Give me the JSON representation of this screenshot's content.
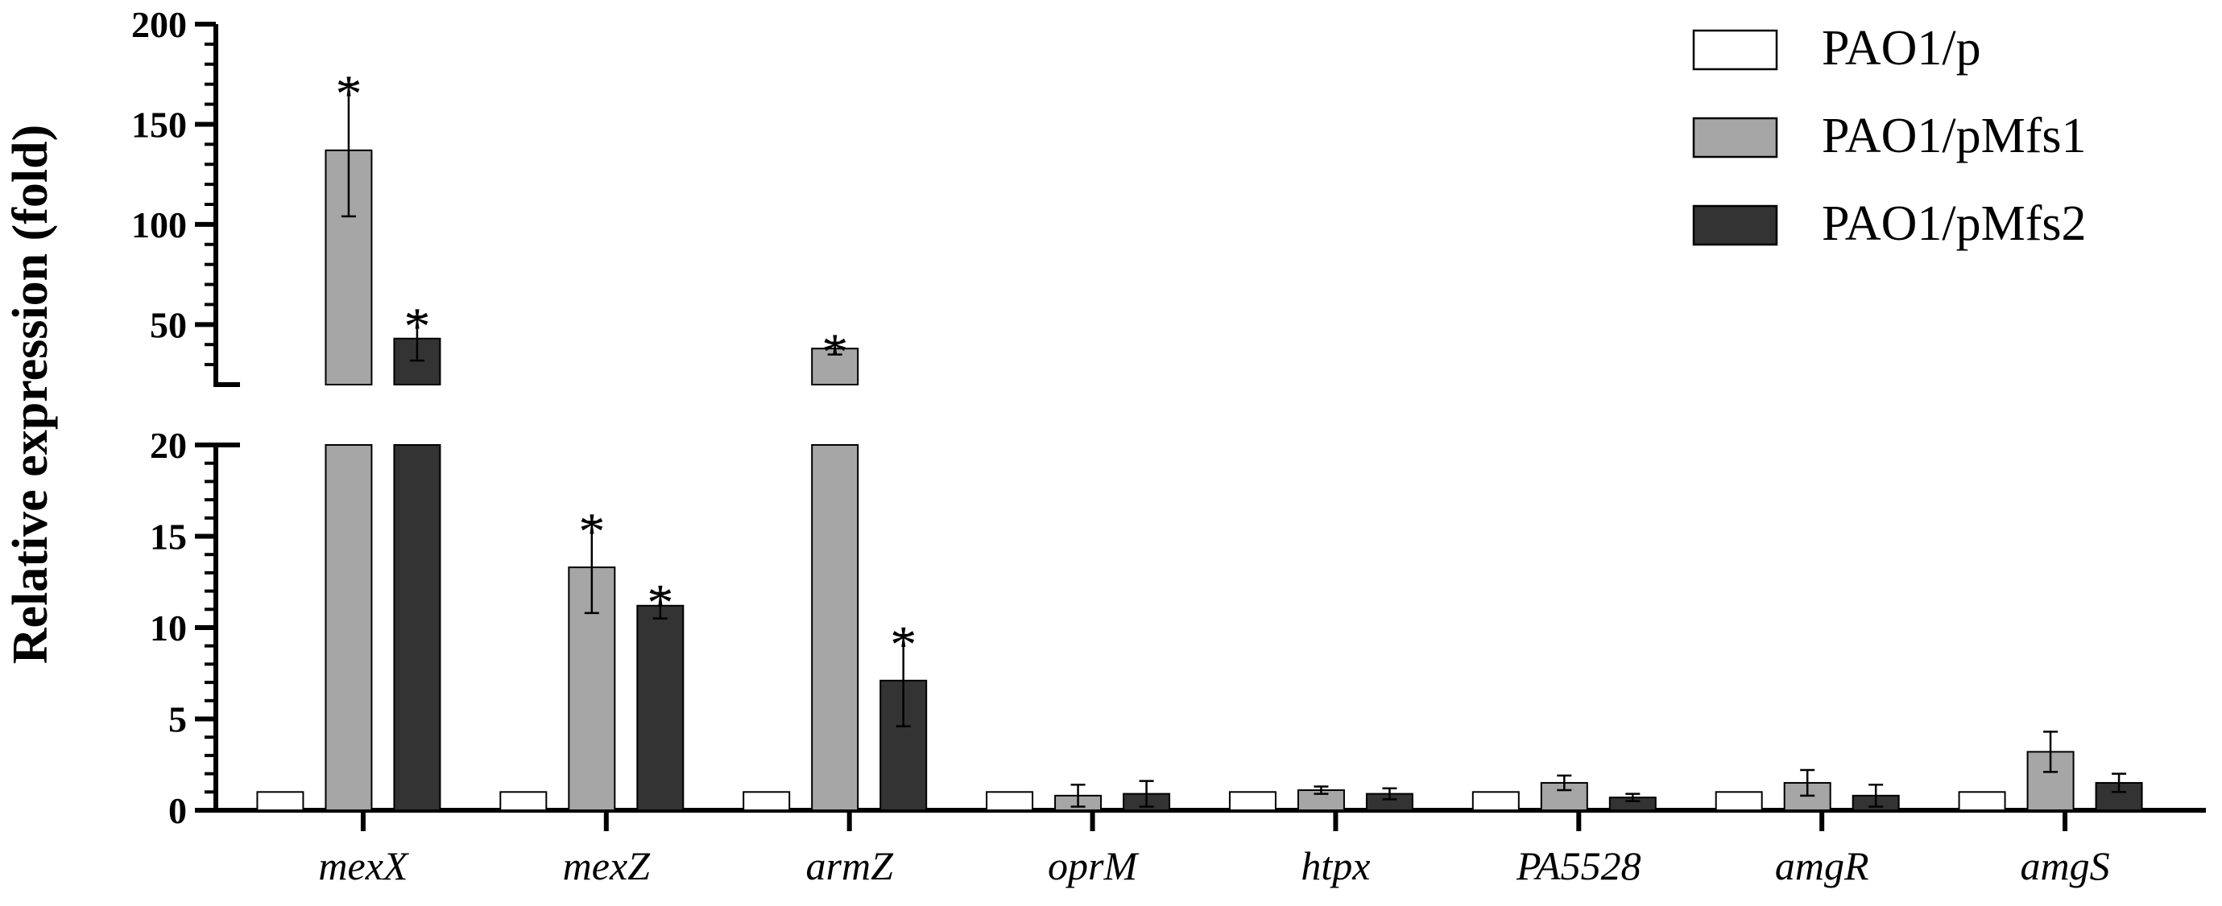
{
  "chart_data": {
    "type": "bar",
    "title": "",
    "xlabel": "",
    "ylabel": "Relative expression (fold)",
    "categories": [
      "mexX",
      "mexZ",
      "armZ",
      "oprM",
      "htpx",
      "PA5528",
      "amgR",
      "amgS"
    ],
    "series": [
      {
        "name": "PAO1/p",
        "color": "#ffffff",
        "values": [
          1,
          1,
          1,
          1,
          1,
          1,
          1,
          1
        ],
        "errors": [
          0,
          0,
          0,
          0,
          0,
          0,
          0,
          0
        ],
        "significant": [
          false,
          false,
          false,
          false,
          false,
          false,
          false,
          false
        ]
      },
      {
        "name": "PAO1/pMfs1",
        "color": "#a6a6a6",
        "values": [
          137,
          13.3,
          38,
          0.8,
          1.1,
          1.5,
          1.5,
          3.2
        ],
        "errors": [
          33,
          2.5,
          3,
          0.6,
          0.2,
          0.4,
          0.7,
          1.1
        ],
        "significant": [
          true,
          true,
          true,
          false,
          false,
          false,
          false,
          false
        ]
      },
      {
        "name": "PAO1/pMfs2",
        "color": "#333333",
        "values": [
          43,
          11.2,
          7.1,
          0.9,
          0.9,
          0.7,
          0.8,
          1.5
        ],
        "errors": [
          11,
          0.7,
          2.5,
          0.7,
          0.3,
          0.2,
          0.6,
          0.5
        ],
        "significant": [
          true,
          true,
          true,
          false,
          false,
          false,
          false,
          false
        ]
      }
    ],
    "yaxis": {
      "broken": true,
      "lower_range": [
        0,
        20
      ],
      "lower_ticks": [
        "0",
        "5",
        "10",
        "15",
        "20"
      ],
      "upper_range": [
        20,
        200
      ],
      "upper_ticks": [
        "50",
        "100",
        "150",
        "200"
      ]
    },
    "significance_marker": "*",
    "legend_position": "top-right",
    "grid": false
  }
}
